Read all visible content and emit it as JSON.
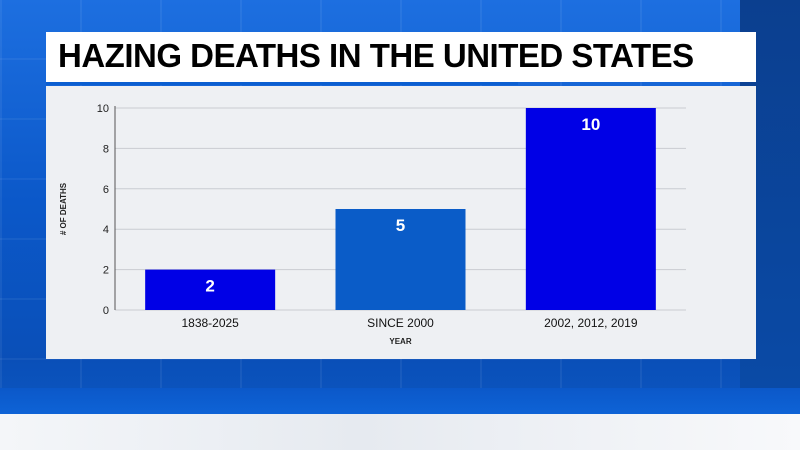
{
  "header": {
    "title": "HAZING DEATHS IN THE UNITED STATES"
  },
  "colors": {
    "bar": "#0000e6",
    "bar_alt": "#0a5cc8",
    "value_label": "#ffffff"
  },
  "chart_data": {
    "type": "bar",
    "title": "HAZING DEATHS IN THE UNITED STATES",
    "xlabel": "YEAR",
    "ylabel": "# OF DEATHS",
    "categories": [
      "1838-2025",
      "SINCE 2000",
      "2002, 2012, 2019"
    ],
    "values": [
      2,
      5,
      10
    ],
    "ylim": [
      0,
      10
    ],
    "yticks": [
      0,
      2,
      4,
      6,
      8,
      10
    ],
    "grid": true,
    "legend": "none"
  }
}
